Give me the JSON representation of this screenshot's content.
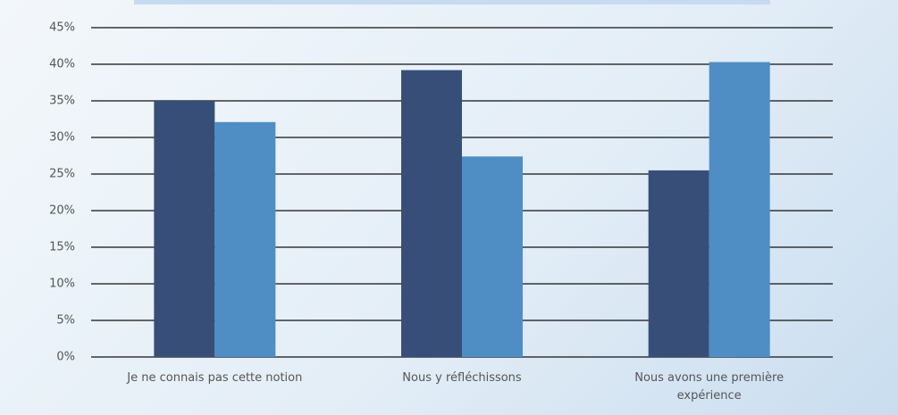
{
  "chart_data": {
    "type": "bar",
    "categories": [
      "Je ne connais pas cette notion",
      "Nous y réfléchissons",
      "Nous avons une première expérience"
    ],
    "series": [
      {
        "color": "#374f78",
        "values": [
          35,
          39.2,
          25.5
        ]
      },
      {
        "color": "#4f8ec4",
        "values": [
          32.1,
          27.4,
          40.3
        ]
      }
    ],
    "ylim": [
      0,
      45
    ],
    "yticks": [
      {
        "value": 0,
        "label": "0%"
      },
      {
        "value": 5,
        "label": "5%"
      },
      {
        "value": 10,
        "label": "10%"
      },
      {
        "value": 15,
        "label": "15%"
      },
      {
        "value": 20,
        "label": "20%"
      },
      {
        "value": 25,
        "label": "25%"
      },
      {
        "value": 30,
        "label": "30%"
      },
      {
        "value": 35,
        "label": "35%"
      },
      {
        "value": 40,
        "label": "40%"
      },
      {
        "value": 45,
        "label": "45%"
      }
    ],
    "grid": true
  }
}
